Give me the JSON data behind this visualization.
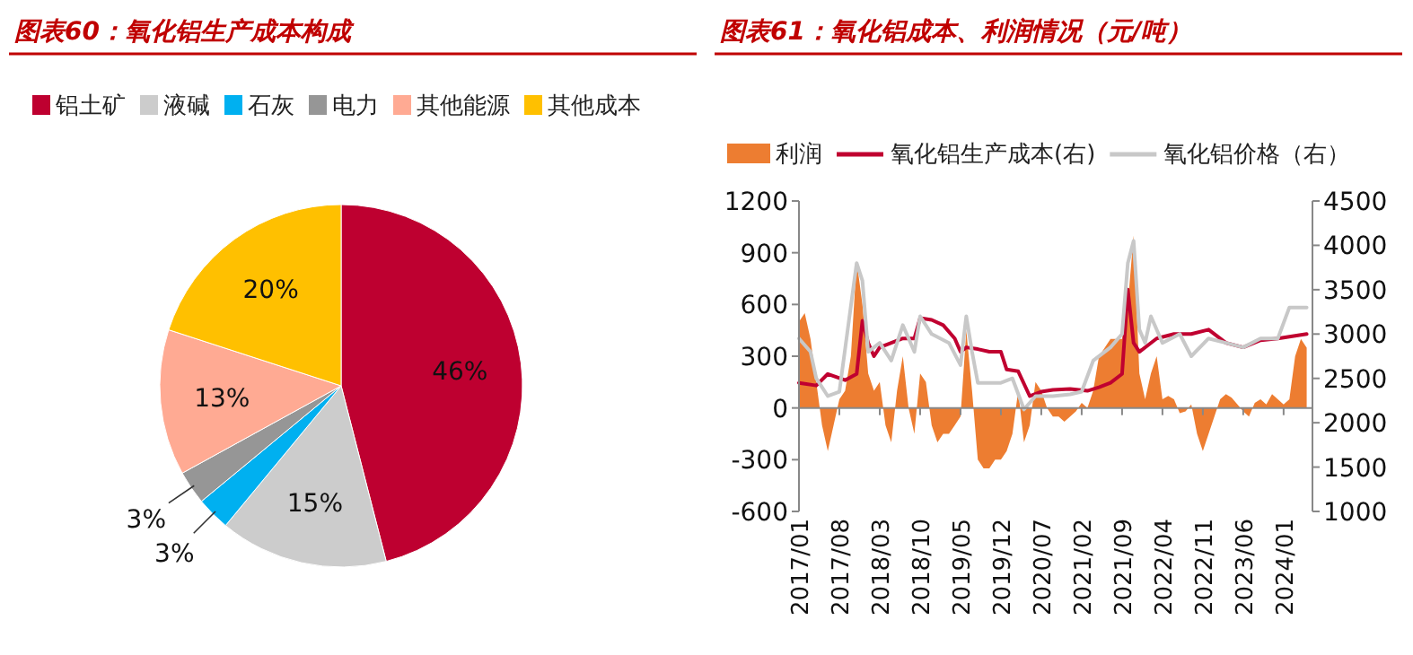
{
  "chart_data": [
    {
      "type": "pie",
      "title": "图表60：氧化铝生产成本构成",
      "categories": [
        "铝土矿",
        "液碱",
        "石灰",
        "电力",
        "其他能源",
        "其他成本"
      ],
      "values": [
        46,
        15,
        3,
        3,
        13,
        20
      ],
      "colors": [
        "#be0030",
        "#cccccc",
        "#00b0f0",
        "#969696",
        "#ffaa93",
        "#ffc000"
      ],
      "value_labels": [
        "46%",
        "15%",
        "3%",
        "3%",
        "13%",
        "20%"
      ],
      "legend": "top"
    },
    {
      "type": "line",
      "title": "图表61：氧化铝成本、利润情况（元/吨）",
      "legend": "top",
      "xlim": [
        "2017-01",
        "2024-06"
      ],
      "xticks": [
        {
          "value": "2017-01",
          "label": "2017/01"
        },
        {
          "value": "2017-08",
          "label": "2017/08"
        },
        {
          "value": "2018-03",
          "label": "2018/03"
        },
        {
          "value": "2018-10",
          "label": "2018/10"
        },
        {
          "value": "2019-05",
          "label": "2019/05"
        },
        {
          "value": "2019-12",
          "label": "2019/12"
        },
        {
          "value": "2020-07",
          "label": "2020/07"
        },
        {
          "value": "2021-02",
          "label": "2021/02"
        },
        {
          "value": "2021-09",
          "label": "2021/09"
        },
        {
          "value": "2022-04",
          "label": "2022/04"
        },
        {
          "value": "2022-11",
          "label": "2022/11"
        },
        {
          "value": "2023-06",
          "label": "2023/06"
        },
        {
          "value": "2024-01",
          "label": "2024/01"
        }
      ],
      "ylim": [
        -600,
        1200
      ],
      "yticks": [
        -600,
        -300,
        0,
        300,
        600,
        900,
        1200
      ],
      "y2lim": [
        1000,
        4500
      ],
      "y2ticks": [
        1000,
        1500,
        2000,
        2500,
        3000,
        3500,
        4000,
        4500
      ],
      "series": [
        {
          "name": "利润",
          "type": "area",
          "color": "#ed7d31",
          "x": [
            "2017-01",
            "2017-02",
            "2017-03",
            "2017-04",
            "2017-05",
            "2017-06",
            "2017-07",
            "2017-08",
            "2017-09",
            "2017-10",
            "2017-11",
            "2017-12",
            "2018-01",
            "2018-02",
            "2018-03",
            "2018-04",
            "2018-05",
            "2018-06",
            "2018-07",
            "2018-08",
            "2018-09",
            "2018-10",
            "2018-11",
            "2018-12",
            "2019-01",
            "2019-02",
            "2019-03",
            "2019-04",
            "2019-05",
            "2019-06",
            "2019-07",
            "2019-08",
            "2019-09",
            "2019-10",
            "2019-11",
            "2019-12",
            "2020-01",
            "2020-02",
            "2020-03",
            "2020-04",
            "2020-05",
            "2020-06",
            "2020-07",
            "2020-08",
            "2020-09",
            "2020-10",
            "2020-11",
            "2020-12",
            "2021-01",
            "2021-02",
            "2021-03",
            "2021-04",
            "2021-05",
            "2021-06",
            "2021-07",
            "2021-08",
            "2021-09",
            "2021-10",
            "2021-11",
            "2021-12",
            "2022-01",
            "2022-02",
            "2022-03",
            "2022-04",
            "2022-05",
            "2022-06",
            "2022-07",
            "2022-08",
            "2022-09",
            "2022-10",
            "2022-11",
            "2022-12",
            "2023-01",
            "2023-02",
            "2023-03",
            "2023-04",
            "2023-05",
            "2023-06",
            "2023-07",
            "2023-08",
            "2023-09",
            "2023-10",
            "2023-11",
            "2023-12",
            "2024-01",
            "2024-02",
            "2024-03",
            "2024-04",
            "2024-05"
          ],
          "values": [
            500,
            550,
            400,
            150,
            -100,
            -250,
            -100,
            50,
            100,
            300,
            850,
            600,
            200,
            100,
            150,
            -100,
            -200,
            100,
            300,
            0,
            -150,
            200,
            150,
            -100,
            -200,
            -150,
            -150,
            -100,
            -50,
            450,
            100,
            -300,
            -350,
            -350,
            -300,
            -300,
            -250,
            -150,
            100,
            -200,
            -100,
            150,
            100,
            0,
            -50,
            -50,
            -80,
            -50,
            -20,
            30,
            0,
            100,
            300,
            350,
            400,
            400,
            400,
            600,
            1000,
            200,
            50,
            200,
            300,
            50,
            70,
            50,
            -30,
            -20,
            20,
            -150,
            -250,
            -150,
            -50,
            50,
            80,
            60,
            20,
            -20,
            -50,
            30,
            50,
            20,
            80,
            50,
            20,
            50,
            300,
            400,
            350
          ]
        },
        {
          "name": "氧化铝生产成本(右)",
          "type": "line",
          "axis": "y2",
          "color": "#c00030",
          "x": [
            "2017-01",
            "2017-04",
            "2017-06",
            "2017-09",
            "2017-11",
            "2017-12",
            "2018-01",
            "2018-02",
            "2018-03",
            "2018-05",
            "2018-07",
            "2018-09",
            "2018-10",
            "2018-12",
            "2019-02",
            "2019-04",
            "2019-05",
            "2019-06",
            "2019-08",
            "2019-10",
            "2019-12",
            "2020-01",
            "2020-03",
            "2020-05",
            "2020-07",
            "2020-09",
            "2020-12",
            "2021-03",
            "2021-05",
            "2021-07",
            "2021-09",
            "2021-10",
            "2021-11",
            "2021-12",
            "2022-03",
            "2022-06",
            "2022-09",
            "2022-12",
            "2023-03",
            "2023-06",
            "2023-09",
            "2023-12",
            "2024-03",
            "2024-05"
          ],
          "values": [
            2450,
            2420,
            2550,
            2480,
            2550,
            3150,
            2900,
            2750,
            2850,
            2900,
            2950,
            2950,
            3180,
            3160,
            3100,
            2950,
            2800,
            2850,
            2830,
            2800,
            2800,
            2600,
            2580,
            2300,
            2350,
            2370,
            2380,
            2360,
            2400,
            2450,
            2550,
            3500,
            2900,
            2800,
            2950,
            3000,
            3000,
            3050,
            2900,
            2850,
            2930,
            2950,
            2980,
            3000
          ]
        },
        {
          "name": "氧化铝价格（右）",
          "type": "line",
          "axis": "y2",
          "color": "#c8c8c8",
          "x": [
            "2017-01",
            "2017-03",
            "2017-04",
            "2017-06",
            "2017-08",
            "2017-11",
            "2017-12",
            "2018-01",
            "2018-03",
            "2018-05",
            "2018-07",
            "2018-09",
            "2018-10",
            "2018-12",
            "2019-03",
            "2019-05",
            "2019-06",
            "2019-07",
            "2019-08",
            "2019-12",
            "2020-02",
            "2020-04",
            "2020-06",
            "2020-09",
            "2020-12",
            "2021-02",
            "2021-04",
            "2021-07",
            "2021-09",
            "2021-10",
            "2021-11",
            "2021-12",
            "2022-01",
            "2022-02",
            "2022-04",
            "2022-07",
            "2022-09",
            "2022-12",
            "2023-03",
            "2023-06",
            "2023-09",
            "2023-12",
            "2024-02",
            "2024-05"
          ],
          "values": [
            2950,
            2800,
            2500,
            2300,
            2350,
            3800,
            3600,
            2800,
            2900,
            2700,
            3100,
            2800,
            3200,
            3000,
            2900,
            2650,
            3200,
            2800,
            2450,
            2450,
            2500,
            2150,
            2300,
            2300,
            2320,
            2350,
            2700,
            2850,
            3000,
            3800,
            4050,
            3050,
            2900,
            3200,
            2900,
            3000,
            2750,
            2950,
            2900,
            2850,
            2950,
            2950,
            3300,
            3300
          ]
        }
      ]
    }
  ]
}
